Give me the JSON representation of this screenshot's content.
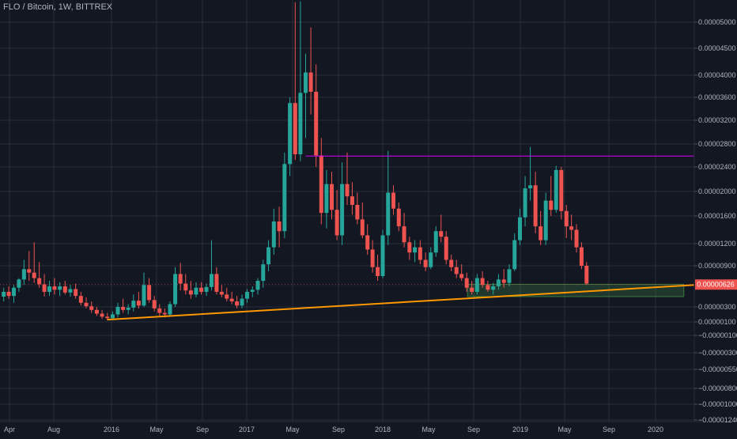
{
  "chart_data": {
    "type": "candlestick",
    "title": "FLO / Bitcoin, 1W, BITTREX",
    "price_axis": {
      "ticks": [
        {
          "label": "0.00005000",
          "value": 5e-05
        },
        {
          "label": "0.00004500",
          "value": 4.5e-05
        },
        {
          "label": "0.00004000",
          "value": 4e-05
        },
        {
          "label": "0.00003600",
          "value": 3.6e-05
        },
        {
          "label": "0.00003200",
          "value": 3.2e-05
        },
        {
          "label": "0.00002800",
          "value": 2.8e-05
        },
        {
          "label": "0.00002400",
          "value": 2.4e-05
        },
        {
          "label": "0.00002000",
          "value": 2e-05
        },
        {
          "label": "0.00001600",
          "value": 1.6e-05
        },
        {
          "label": "0.00001200",
          "value": 1.2e-05
        },
        {
          "label": "0.00000900",
          "value": 9e-06
        },
        {
          "label": "0.00000300",
          "value": 3e-06
        },
        {
          "label": "0.00000100",
          "value": 1e-06
        },
        {
          "label": "−0.00000100",
          "value": -1e-06
        },
        {
          "label": "−0.00000300",
          "value": -3e-06
        },
        {
          "label": "−0.00000550",
          "value": -5.5e-06
        },
        {
          "label": "−0.00000800",
          "value": -8e-06
        },
        {
          "label": "−0.00001000",
          "value": -1e-05
        },
        {
          "label": "−0.00001240",
          "value": -1.24e-05
        }
      ],
      "current_price_label": "0.00000626",
      "current_price_value": 6.26e-06
    },
    "time_axis": {
      "labels": [
        "Apr",
        "Aug",
        "2016",
        "May",
        "Sep",
        "2017",
        "May",
        "Sep",
        "2018",
        "May",
        "Sep",
        "2019",
        "May",
        "Sep",
        "2020"
      ],
      "dates": [
        "2015-04-01",
        "2015-08-01",
        "2016-01-01",
        "2016-05-01",
        "2016-09-01",
        "2017-01-01",
        "2017-05-01",
        "2017-09-01",
        "2018-01-01",
        "2018-05-01",
        "2018-09-01",
        "2019-01-01",
        "2019-05-01",
        "2019-09-01",
        "2020-01-01"
      ]
    },
    "colors": {
      "background": "#131722",
      "grid": "#2a2e39",
      "up": "#26a69a",
      "down": "#ef5350",
      "trendline": "#ff9800",
      "resistance": "#d500f9",
      "support_zone": "#4caf50",
      "text": "#b2b5be",
      "price_label_bg": "#ef5350"
    },
    "annotations": {
      "trendline": {
        "from": {
          "date": "2015-12-21",
          "price": 1.3e-06
        },
        "to": {
          "date": "2020-03-15",
          "price": 6.2e-06
        }
      },
      "resistance_line": {
        "from_date": "2017-06-05",
        "to_date": "2020-03-15",
        "price": 2.59e-05
      },
      "support_zone": {
        "from_date": "2018-08-15",
        "to_date": "2020-03-15",
        "top": 6.3e-06,
        "bottom": 4.5e-06
      }
    },
    "candles": [
      {
        "date": "2015-03-16",
        "open": 4.5e-06,
        "high": 5.8e-06,
        "low": 3.8e-06,
        "close": 5.2e-06
      },
      {
        "date": "2015-03-30",
        "open": 5.2e-06,
        "high": 6e-06,
        "low": 4.2e-06,
        "close": 4.6e-06
      },
      {
        "date": "2015-04-13",
        "open": 4.6e-06,
        "high": 6.2e-06,
        "low": 3.6e-06,
        "close": 5.8e-06
      },
      {
        "date": "2015-04-27",
        "open": 5.8e-06,
        "high": 7.2e-06,
        "low": 5.2e-06,
        "close": 7e-06
      },
      {
        "date": "2015-05-11",
        "open": 7e-06,
        "high": 9.8e-06,
        "low": 6.2e-06,
        "close": 8.5e-06
      },
      {
        "date": "2015-05-25",
        "open": 8.5e-06,
        "high": 1.1e-05,
        "low": 6.8e-06,
        "close": 8e-06
      },
      {
        "date": "2015-06-08",
        "open": 8e-06,
        "high": 1.22e-05,
        "low": 6.5e-06,
        "close": 7.2e-06
      },
      {
        "date": "2015-06-22",
        "open": 7.2e-06,
        "high": 9.5e-06,
        "low": 5.8e-06,
        "close": 6.3e-06
      },
      {
        "date": "2015-07-06",
        "open": 6.3e-06,
        "high": 7.8e-06,
        "low": 4.5e-06,
        "close": 5.2e-06
      },
      {
        "date": "2015-07-20",
        "open": 5.2e-06,
        "high": 6.8e-06,
        "low": 4.6e-06,
        "close": 6e-06
      },
      {
        "date": "2015-08-03",
        "open": 6e-06,
        "high": 7.2e-06,
        "low": 4.8e-06,
        "close": 5.5e-06
      },
      {
        "date": "2015-08-17",
        "open": 5.5e-06,
        "high": 6.6e-06,
        "low": 4.6e-06,
        "close": 6e-06
      },
      {
        "date": "2015-08-31",
        "open": 6e-06,
        "high": 6.8e-06,
        "low": 4.8e-06,
        "close": 5.1e-06
      },
      {
        "date": "2015-09-14",
        "open": 5.1e-06,
        "high": 6.2e-06,
        "low": 4.5e-06,
        "close": 5.6e-06
      },
      {
        "date": "2015-09-28",
        "open": 5.6e-06,
        "high": 6.4e-06,
        "low": 4.2e-06,
        "close": 4.6e-06
      },
      {
        "date": "2015-10-12",
        "open": 4.6e-06,
        "high": 5.2e-06,
        "low": 3.2e-06,
        "close": 3.6e-06
      },
      {
        "date": "2015-10-26",
        "open": 3.6e-06,
        "high": 4.4e-06,
        "low": 2.8e-06,
        "close": 3.1e-06
      },
      {
        "date": "2015-11-09",
        "open": 3.1e-06,
        "high": 3.8e-06,
        "low": 2.2e-06,
        "close": 2.6e-06
      },
      {
        "date": "2015-11-23",
        "open": 2.6e-06,
        "high": 3e-06,
        "low": 1.8e-06,
        "close": 2.1e-06
      },
      {
        "date": "2015-12-07",
        "open": 2.1e-06,
        "high": 2.6e-06,
        "low": 1.4e-06,
        "close": 1.7e-06
      },
      {
        "date": "2015-12-21",
        "open": 1.7e-06,
        "high": 2.2e-06,
        "low": 1.2e-06,
        "close": 1.5e-06
      },
      {
        "date": "2016-01-04",
        "open": 1.5e-06,
        "high": 2.4e-06,
        "low": 1.3e-06,
        "close": 2e-06
      },
      {
        "date": "2016-01-18",
        "open": 2e-06,
        "high": 3.6e-06,
        "low": 1.6e-06,
        "close": 3e-06
      },
      {
        "date": "2016-02-01",
        "open": 3e-06,
        "high": 4.2e-06,
        "low": 2.2e-06,
        "close": 2.6e-06
      },
      {
        "date": "2016-02-15",
        "open": 2.6e-06,
        "high": 3.4e-06,
        "low": 2e-06,
        "close": 2.9e-06
      },
      {
        "date": "2016-02-29",
        "open": 2.9e-06,
        "high": 4.8e-06,
        "low": 2.4e-06,
        "close": 3.9e-06
      },
      {
        "date": "2016-03-14",
        "open": 3.9e-06,
        "high": 5.2e-06,
        "low": 2.8e-06,
        "close": 3.2e-06
      },
      {
        "date": "2016-03-28",
        "open": 3.2e-06,
        "high": 8e-06,
        "low": 3e-06,
        "close": 6.2e-06
      },
      {
        "date": "2016-04-11",
        "open": 6.2e-06,
        "high": 7.2e-06,
        "low": 3.6e-06,
        "close": 4e-06
      },
      {
        "date": "2016-04-25",
        "open": 4e-06,
        "high": 4.6e-06,
        "low": 2.4e-06,
        "close": 2.8e-06
      },
      {
        "date": "2016-05-09",
        "open": 2.8e-06,
        "high": 3.4e-06,
        "low": 1.8e-06,
        "close": 2.2e-06
      },
      {
        "date": "2016-05-23",
        "open": 2.2e-06,
        "high": 2.8e-06,
        "low": 1.6e-06,
        "close": 2e-06
      },
      {
        "date": "2016-06-06",
        "open": 2e-06,
        "high": 3.8e-06,
        "low": 1.8e-06,
        "close": 3.4e-06
      },
      {
        "date": "2016-06-20",
        "open": 3.4e-06,
        "high": 8.8e-06,
        "low": 3e-06,
        "close": 7.8e-06
      },
      {
        "date": "2016-07-04",
        "open": 7.8e-06,
        "high": 9.4e-06,
        "low": 5.4e-06,
        "close": 6.4e-06
      },
      {
        "date": "2016-07-18",
        "open": 6.4e-06,
        "high": 7.8e-06,
        "low": 4.8e-06,
        "close": 5.4e-06
      },
      {
        "date": "2016-08-01",
        "open": 5.4e-06,
        "high": 6.8e-06,
        "low": 4.2e-06,
        "close": 4.8e-06
      },
      {
        "date": "2016-08-15",
        "open": 4.8e-06,
        "high": 6.6e-06,
        "low": 4.4e-06,
        "close": 5.8e-06
      },
      {
        "date": "2016-08-29",
        "open": 5.8e-06,
        "high": 6.6e-06,
        "low": 4.8e-06,
        "close": 5.2e-06
      },
      {
        "date": "2016-09-12",
        "open": 5.2e-06,
        "high": 6.4e-06,
        "low": 4.6e-06,
        "close": 5.9e-06
      },
      {
        "date": "2016-09-26",
        "open": 5.9e-06,
        "high": 1.25e-05,
        "low": 5.4e-06,
        "close": 7.8e-06
      },
      {
        "date": "2016-10-10",
        "open": 7.8e-06,
        "high": 8.8e-06,
        "low": 4.8e-06,
        "close": 5.2e-06
      },
      {
        "date": "2016-10-24",
        "open": 5.2e-06,
        "high": 6.2e-06,
        "low": 4.4e-06,
        "close": 4.8e-06
      },
      {
        "date": "2016-11-07",
        "open": 4.8e-06,
        "high": 5.8e-06,
        "low": 3.8e-06,
        "close": 4.2e-06
      },
      {
        "date": "2016-11-21",
        "open": 4.2e-06,
        "high": 5.2e-06,
        "low": 3.4e-06,
        "close": 3.8e-06
      },
      {
        "date": "2016-12-05",
        "open": 3.8e-06,
        "high": 4.6e-06,
        "low": 2.8e-06,
        "close": 3.2e-06
      },
      {
        "date": "2016-12-19",
        "open": 3.2e-06,
        "high": 4.8e-06,
        "low": 2.8e-06,
        "close": 4.2e-06
      },
      {
        "date": "2017-01-02",
        "open": 4.2e-06,
        "high": 5.6e-06,
        "low": 3.6e-06,
        "close": 5.2e-06
      },
      {
        "date": "2017-01-16",
        "open": 5.2e-06,
        "high": 6e-06,
        "low": 4.4e-06,
        "close": 5.5e-06
      },
      {
        "date": "2017-01-30",
        "open": 5.5e-06,
        "high": 7.2e-06,
        "low": 4.8e-06,
        "close": 6.8e-06
      },
      {
        "date": "2017-02-13",
        "open": 6.8e-06,
        "high": 9.8e-06,
        "low": 5.8e-06,
        "close": 9.2e-06
      },
      {
        "date": "2017-02-27",
        "open": 9.2e-06,
        "high": 1.25e-05,
        "low": 8.2e-06,
        "close": 1.15e-05
      },
      {
        "date": "2017-03-13",
        "open": 1.15e-05,
        "high": 1.72e-05,
        "low": 1.05e-05,
        "close": 1.52e-05
      },
      {
        "date": "2017-03-27",
        "open": 1.52e-05,
        "high": 1.75e-05,
        "low": 1.15e-05,
        "close": 1.38e-05
      },
      {
        "date": "2017-04-10",
        "open": 1.38e-05,
        "high": 2.65e-05,
        "low": 1.28e-05,
        "close": 2.45e-05
      },
      {
        "date": "2017-04-24",
        "open": 2.45e-05,
        "high": 3.6e-05,
        "low": 2.25e-05,
        "close": 3.5e-05
      },
      {
        "date": "2017-05-08",
        "open": 3.5e-05,
        "high": 5.38e-05,
        "low": 2.52e-05,
        "close": 2.62e-05
      },
      {
        "date": "2017-05-22",
        "open": 2.62e-05,
        "high": 5.4e-05,
        "low": 2.5e-05,
        "close": 3.68e-05
      },
      {
        "date": "2017-06-05",
        "open": 3.68e-05,
        "high": 4.4e-05,
        "low": 2.9e-05,
        "close": 4.05e-05
      },
      {
        "date": "2017-06-19",
        "open": 4.05e-05,
        "high": 4.9e-05,
        "low": 3.3e-05,
        "close": 3.7e-05
      },
      {
        "date": "2017-07-03",
        "open": 3.7e-05,
        "high": 4.2e-05,
        "low": 2.4e-05,
        "close": 2.6e-05
      },
      {
        "date": "2017-07-17",
        "open": 2.6e-05,
        "high": 2.9e-05,
        "low": 1.48e-05,
        "close": 1.65e-05
      },
      {
        "date": "2017-07-31",
        "open": 1.65e-05,
        "high": 2.35e-05,
        "low": 1.42e-05,
        "close": 2.12e-05
      },
      {
        "date": "2017-08-14",
        "open": 2.12e-05,
        "high": 2.32e-05,
        "low": 1.55e-05,
        "close": 1.7e-05
      },
      {
        "date": "2017-08-28",
        "open": 1.7e-05,
        "high": 2.02e-05,
        "low": 1.25e-05,
        "close": 1.32e-05
      },
      {
        "date": "2017-09-11",
        "open": 1.32e-05,
        "high": 2.48e-05,
        "low": 1.18e-05,
        "close": 2.12e-05
      },
      {
        "date": "2017-09-25",
        "open": 2.12e-05,
        "high": 2.65e-05,
        "low": 1.78e-05,
        "close": 1.92e-05
      },
      {
        "date": "2017-10-09",
        "open": 1.92e-05,
        "high": 2.15e-05,
        "low": 1.62e-05,
        "close": 1.78e-05
      },
      {
        "date": "2017-10-23",
        "open": 1.78e-05,
        "high": 1.98e-05,
        "low": 1.48e-05,
        "close": 1.55e-05
      },
      {
        "date": "2017-11-06",
        "open": 1.55e-05,
        "high": 1.82e-05,
        "low": 1.28e-05,
        "close": 1.32e-05
      },
      {
        "date": "2017-11-20",
        "open": 1.32e-05,
        "high": 1.48e-05,
        "low": 1.05e-05,
        "close": 1.12e-05
      },
      {
        "date": "2017-12-04",
        "open": 1.12e-05,
        "high": 1.25e-05,
        "low": 8e-06,
        "close": 8.8e-06
      },
      {
        "date": "2017-12-18",
        "open": 8.8e-06,
        "high": 1.05e-05,
        "low": 6.8e-06,
        "close": 7.5e-06
      },
      {
        "date": "2018-01-01",
        "open": 7.5e-06,
        "high": 1.4e-05,
        "low": 7.2e-06,
        "close": 1.32e-05
      },
      {
        "date": "2018-01-15",
        "open": 1.32e-05,
        "high": 2.68e-05,
        "low": 1.18e-05,
        "close": 1.98e-05
      },
      {
        "date": "2018-01-29",
        "open": 1.98e-05,
        "high": 2.1e-05,
        "low": 1.62e-05,
        "close": 1.72e-05
      },
      {
        "date": "2018-02-12",
        "open": 1.72e-05,
        "high": 1.82e-05,
        "low": 1.38e-05,
        "close": 1.45e-05
      },
      {
        "date": "2018-02-26",
        "open": 1.45e-05,
        "high": 1.65e-05,
        "low": 1.15e-05,
        "close": 1.22e-05
      },
      {
        "date": "2018-03-12",
        "open": 1.22e-05,
        "high": 1.3e-05,
        "low": 9.8e-06,
        "close": 1.08e-05
      },
      {
        "date": "2018-03-26",
        "open": 1.08e-05,
        "high": 1.25e-05,
        "low": 9.5e-06,
        "close": 1.15e-05
      },
      {
        "date": "2018-04-09",
        "open": 1.15e-05,
        "high": 1.25e-05,
        "low": 9.2e-06,
        "close": 9.8e-06
      },
      {
        "date": "2018-04-23",
        "open": 9.8e-06,
        "high": 1.08e-05,
        "low": 8.2e-06,
        "close": 8.8e-06
      },
      {
        "date": "2018-05-07",
        "open": 8.8e-06,
        "high": 1.15e-05,
        "low": 8.5e-06,
        "close": 1.08e-05
      },
      {
        "date": "2018-05-21",
        "open": 1.08e-05,
        "high": 1.45e-05,
        "low": 1.02e-05,
        "close": 1.38e-05
      },
      {
        "date": "2018-06-04",
        "open": 1.38e-05,
        "high": 1.62e-05,
        "low": 1.22e-05,
        "close": 1.3e-05
      },
      {
        "date": "2018-06-18",
        "open": 1.3e-05,
        "high": 1.38e-05,
        "low": 9.2e-06,
        "close": 9.8e-06
      },
      {
        "date": "2018-07-02",
        "open": 9.8e-06,
        "high": 1.05e-05,
        "low": 8.2e-06,
        "close": 8.8e-06
      },
      {
        "date": "2018-07-16",
        "open": 8.8e-06,
        "high": 9.8e-06,
        "low": 7.2e-06,
        "close": 7.8e-06
      },
      {
        "date": "2018-07-30",
        "open": 7.8e-06,
        "high": 9.2e-06,
        "low": 6.8e-06,
        "close": 7.2e-06
      },
      {
        "date": "2018-08-13",
        "open": 7.2e-06,
        "high": 8e-06,
        "low": 5.2e-06,
        "close": 5.8e-06
      },
      {
        "date": "2018-08-27",
        "open": 5.8e-06,
        "high": 6.8e-06,
        "low": 4.8e-06,
        "close": 5.2e-06
      },
      {
        "date": "2018-09-10",
        "open": 5.2e-06,
        "high": 7.8e-06,
        "low": 4.8e-06,
        "close": 7.2e-06
      },
      {
        "date": "2018-09-24",
        "open": 7.2e-06,
        "high": 8.2e-06,
        "low": 5.8e-06,
        "close": 6.2e-06
      },
      {
        "date": "2018-10-08",
        "open": 6.2e-06,
        "high": 6.8e-06,
        "low": 5.2e-06,
        "close": 5.5e-06
      },
      {
        "date": "2018-10-22",
        "open": 5.5e-06,
        "high": 6.5e-06,
        "low": 4.8e-06,
        "close": 6e-06
      },
      {
        "date": "2018-11-05",
        "open": 6e-06,
        "high": 7.8e-06,
        "low": 5.5e-06,
        "close": 7e-06
      },
      {
        "date": "2018-11-19",
        "open": 7e-06,
        "high": 8.5e-06,
        "low": 5.8e-06,
        "close": 6.5e-06
      },
      {
        "date": "2018-12-03",
        "open": 6.5e-06,
        "high": 9.2e-06,
        "low": 6e-06,
        "close": 8.5e-06
      },
      {
        "date": "2018-12-17",
        "open": 8.5e-06,
        "high": 1.35e-05,
        "low": 8.2e-06,
        "close": 1.25e-05
      },
      {
        "date": "2018-12-31",
        "open": 1.25e-05,
        "high": 1.72e-05,
        "low": 1.18e-05,
        "close": 1.58e-05
      },
      {
        "date": "2019-01-14",
        "open": 1.58e-05,
        "high": 2.25e-05,
        "low": 1.45e-05,
        "close": 2.05e-05
      },
      {
        "date": "2019-01-28",
        "open": 2.05e-05,
        "high": 2.75e-05,
        "low": 1.85e-05,
        "close": 2.1e-05
      },
      {
        "date": "2019-02-11",
        "open": 2.1e-05,
        "high": 2.32e-05,
        "low": 1.35e-05,
        "close": 1.45e-05
      },
      {
        "date": "2019-02-25",
        "open": 1.45e-05,
        "high": 1.68e-05,
        "low": 1.18e-05,
        "close": 1.25e-05
      },
      {
        "date": "2019-03-11",
        "open": 1.25e-05,
        "high": 1.98e-05,
        "low": 1.18e-05,
        "close": 1.85e-05
      },
      {
        "date": "2019-03-25",
        "open": 1.85e-05,
        "high": 2.25e-05,
        "low": 1.6e-05,
        "close": 1.7e-05
      },
      {
        "date": "2019-04-08",
        "open": 1.7e-05,
        "high": 2.42e-05,
        "low": 1.65e-05,
        "close": 2.35e-05
      },
      {
        "date": "2019-04-22",
        "open": 2.35e-05,
        "high": 2.4e-05,
        "low": 1.55e-05,
        "close": 1.68e-05
      },
      {
        "date": "2019-05-06",
        "open": 1.68e-05,
        "high": 1.78e-05,
        "low": 1.28e-05,
        "close": 1.45e-05
      },
      {
        "date": "2019-05-20",
        "open": 1.45e-05,
        "high": 1.62e-05,
        "low": 1.25e-05,
        "close": 1.4e-05
      },
      {
        "date": "2019-06-03",
        "open": 1.4e-05,
        "high": 1.48e-05,
        "low": 1.08e-05,
        "close": 1.15e-05
      },
      {
        "date": "2019-06-17",
        "open": 1.15e-05,
        "high": 1.22e-05,
        "low": 8.5e-06,
        "close": 9e-06
      },
      {
        "date": "2019-07-01",
        "open": 9e-06,
        "high": 9.5e-06,
        "low": 6.2e-06,
        "close": 6.4e-06
      }
    ]
  }
}
